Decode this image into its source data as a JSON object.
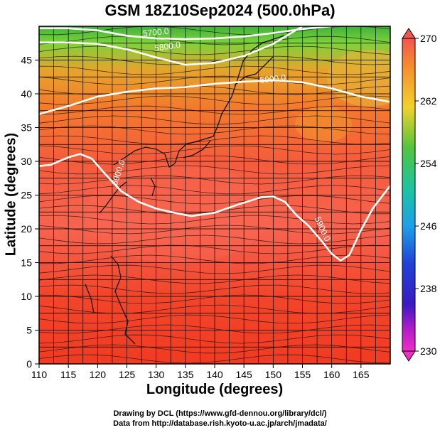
{
  "title": "GSM 18Z10Sep2024 (500.0hPa)",
  "axes": {
    "xlabel": "Longitude (degrees)",
    "ylabel": "Latitude  (degrees)",
    "x_ticks": [
      "110",
      "115",
      "120",
      "125",
      "130",
      "135",
      "140",
      "145",
      "150",
      "155",
      "160",
      "165"
    ],
    "y_ticks": [
      "0",
      "5",
      "10",
      "15",
      "20",
      "25",
      "30",
      "35",
      "40",
      "45"
    ]
  },
  "colorbar": {
    "ticks": [
      "270",
      "262",
      "254",
      "246",
      "238",
      "230"
    ]
  },
  "contour_labels": [
    "5700.0",
    "5800.0",
    "5900.0",
    "5900.0",
    "5900.0"
  ],
  "credits": {
    "line1": "Drawing by DCL (https://www.gfd-dennou.org/library/dcl/)",
    "line2": "Data from http://database.rish.kyoto-u.ac.jp/arch/jmadata/"
  },
  "chart_data": {
    "type": "heatmap",
    "title": "GSM 18Z10Sep2024 (500.0hPa)",
    "xlabel": "Longitude (degrees)",
    "ylabel": "Latitude  (degrees)",
    "xlim": [
      110,
      170
    ],
    "ylim": [
      0,
      50
    ],
    "color_scale": {
      "min": 230,
      "max": 270
    },
    "contours": [
      {
        "label": "5700.0",
        "lon": [
          110,
          115,
          120,
          125,
          130,
          135,
          140,
          145,
          150,
          155,
          160
        ],
        "lat": [
          49.7,
          49.7,
          49.4,
          48.6,
          48.2,
          48.1,
          48.2,
          48.5,
          49.0,
          49.6,
          50.0
        ]
      },
      {
        "label": "5800.0",
        "lon": [
          110,
          115,
          120,
          125,
          130,
          135,
          140,
          145,
          150,
          155
        ],
        "lat": [
          47.6,
          47.6,
          47.4,
          46.6,
          45.4,
          44.3,
          44.6,
          45.6,
          47.4,
          50.0
        ]
      },
      {
        "label": "5900.0",
        "lon": [
          110,
          115,
          120,
          125,
          130,
          135,
          140,
          145,
          150,
          155,
          160,
          165,
          170
        ],
        "lat": [
          37.0,
          38.2,
          39.6,
          40.3,
          40.8,
          41.0,
          41.5,
          41.8,
          42.0,
          41.7,
          40.8,
          39.6,
          38.8
        ]
      },
      {
        "label": "5900.0",
        "lon": [
          110,
          112,
          115,
          117,
          119,
          121,
          124,
          127,
          130,
          133,
          136,
          140,
          144,
          148,
          150,
          152,
          154,
          156,
          158,
          160,
          161.5,
          163,
          165,
          167,
          170
        ],
        "lat": [
          29.3,
          29.5,
          30.6,
          31.1,
          30.4,
          28.4,
          25.6,
          24.0,
          23.0,
          22.4,
          21.9,
          22.4,
          23.6,
          24.7,
          24.8,
          24.0,
          22.0,
          20.5,
          18.5,
          16.3,
          15.3,
          16.1,
          19.8,
          23.0,
          26.4
        ]
      }
    ],
    "grid": true
  }
}
